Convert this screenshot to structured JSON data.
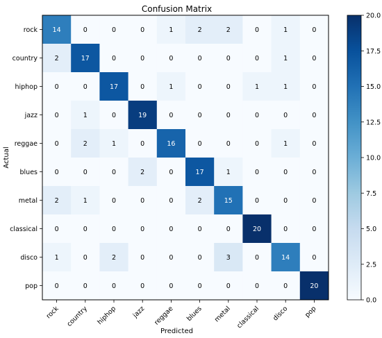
{
  "chart_data": {
    "type": "heatmap",
    "title": "Confusion Matrix",
    "xlabel": "Predicted",
    "ylabel": "Actual",
    "x_categories": [
      "rock",
      "country",
      "hiphop",
      "jazz",
      "reggae",
      "blues",
      "metal",
      "classical",
      "disco",
      "pop"
    ],
    "y_categories": [
      "rock",
      "country",
      "hiphop",
      "jazz",
      "reggae",
      "blues",
      "metal",
      "classical",
      "disco",
      "pop"
    ],
    "values": [
      [
        14,
        0,
        0,
        0,
        1,
        2,
        2,
        0,
        1,
        0
      ],
      [
        2,
        17,
        0,
        0,
        0,
        0,
        0,
        0,
        1,
        0
      ],
      [
        0,
        0,
        17,
        0,
        1,
        0,
        0,
        1,
        1,
        0
      ],
      [
        0,
        1,
        0,
        19,
        0,
        0,
        0,
        0,
        0,
        0
      ],
      [
        0,
        2,
        1,
        0,
        16,
        0,
        0,
        0,
        1,
        0
      ],
      [
        0,
        0,
        0,
        2,
        0,
        17,
        1,
        0,
        0,
        0
      ],
      [
        2,
        1,
        0,
        0,
        0,
        2,
        15,
        0,
        0,
        0
      ],
      [
        0,
        0,
        0,
        0,
        0,
        0,
        0,
        20,
        0,
        0
      ],
      [
        1,
        0,
        2,
        0,
        0,
        0,
        3,
        0,
        14,
        0
      ],
      [
        0,
        0,
        0,
        0,
        0,
        0,
        0,
        0,
        0,
        20
      ]
    ],
    "colormap": "Blues",
    "color_range": [
      0,
      20
    ],
    "colorbar_ticks": [
      "0.0",
      "2.5",
      "5.0",
      "7.5",
      "10.0",
      "12.5",
      "15.0",
      "17.5",
      "20.0"
    ],
    "grid": false
  }
}
